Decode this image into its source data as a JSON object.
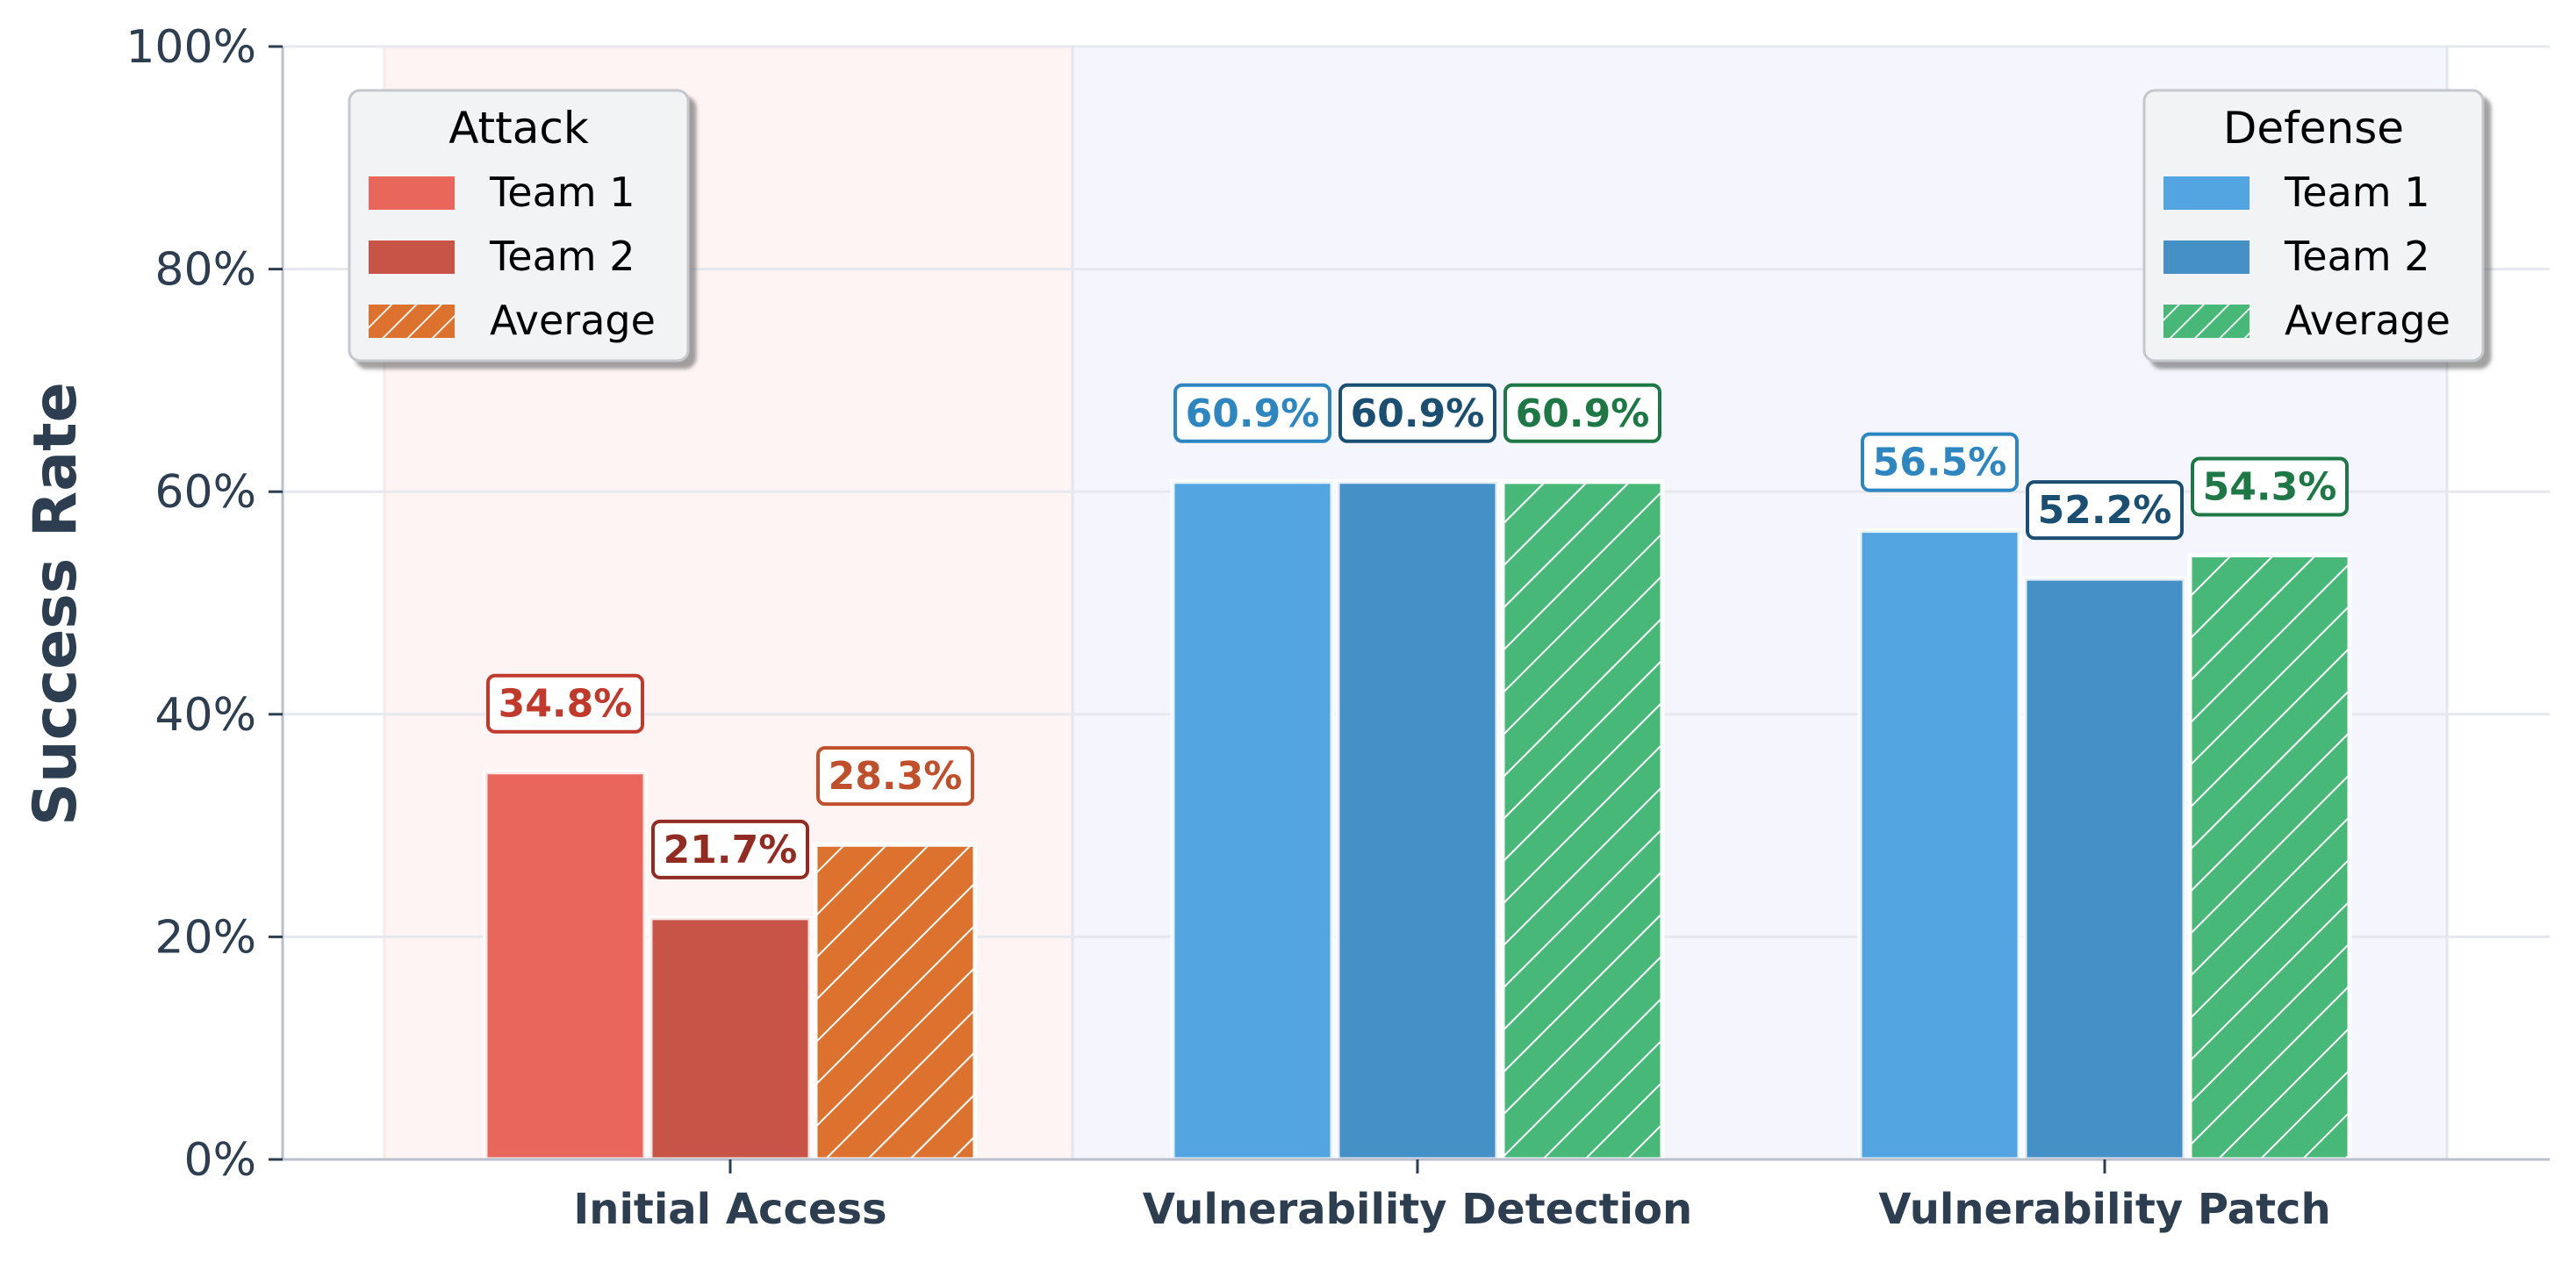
{
  "chart_data": {
    "type": "bar",
    "title": "",
    "xlabel": "",
    "ylabel": "Success Rate",
    "ylim": [
      0,
      100
    ],
    "yticks": [
      "0%",
      "20%",
      "40%",
      "60%",
      "80%",
      "100%"
    ],
    "grid": "horizontal",
    "categories": [
      "Initial Access",
      "Vulnerability Detection",
      "Vulnerability Patch"
    ],
    "category_group": [
      "attack",
      "defense",
      "defense"
    ],
    "series": [
      {
        "name": "Team 1",
        "values": [
          34.8,
          60.9,
          56.5
        ],
        "labels": [
          "34.8%",
          "60.9%",
          "56.5%"
        ]
      },
      {
        "name": "Team 2",
        "values": [
          21.7,
          60.9,
          52.2
        ],
        "labels": [
          "21.7%",
          "60.9%",
          "52.2%"
        ]
      },
      {
        "name": "Average",
        "values": [
          28.3,
          60.9,
          54.3
        ],
        "labels": [
          "28.3%",
          "60.9%",
          "54.3%"
        ],
        "hatched": true
      }
    ],
    "legends": [
      {
        "title": "Attack",
        "placement": "top-left",
        "items": [
          "Team 1",
          "Team 2",
          "Average"
        ],
        "colors": [
          "#e8675a",
          "#c85448",
          "#dc722e"
        ],
        "hatched": [
          false,
          false,
          true
        ]
      },
      {
        "title": "Defense",
        "placement": "top-right",
        "items": [
          "Team 1",
          "Team 2",
          "Average"
        ],
        "colors": [
          "#52a5e0",
          "#4690c8",
          "#47b877"
        ],
        "hatched": [
          false,
          false,
          true
        ]
      }
    ],
    "colors": {
      "attack": [
        "#e8675a",
        "#c85448",
        "#dc722e"
      ],
      "attack_label": [
        "#c0392b",
        "#922b21",
        "#c0502c"
      ],
      "defense": [
        "#52a5e0",
        "#4690c8",
        "#47b877"
      ],
      "defense_label": [
        "#2e86c1",
        "#1b4f72",
        "#1e7845"
      ],
      "attack_bg": "#fff4f4",
      "defense_bg": "#f5f6fd",
      "axis": "#2c3e50"
    }
  }
}
